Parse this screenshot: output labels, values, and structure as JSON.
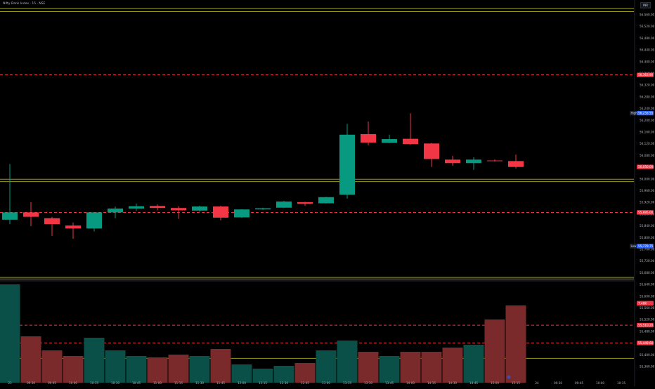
{
  "header": {
    "symbol_line": "Nifty Bank Index · 15 · NSE",
    "corner_badge": "INR"
  },
  "colors": {
    "up": "#089981",
    "down": "#f23645",
    "vol_up": "#0a4f48",
    "vol_down": "#7a2a2a",
    "level_red": "#f23645",
    "level_yellow": "#9a9a1a",
    "grid": "#161a25",
    "axis_text": "#b2b5be"
  },
  "chart_data": {
    "type": "candlestick",
    "x_tick_labels": [
      "23",
      "09:30",
      "09:45",
      "10:00",
      "10:15",
      "10:30",
      "10:45",
      "11:00",
      "11:15",
      "11:30",
      "11:45",
      "12:00",
      "12:15",
      "12:30",
      "12:45",
      "13:00",
      "13:15",
      "13:30",
      "13:45",
      "14:00",
      "14:15",
      "14:30",
      "14:45",
      "15:00",
      "15:15",
      "24",
      "09:30",
      "09:45",
      "10:00",
      "10:15"
    ],
    "y_tick_labels": [
      "56,560.00",
      "56,520.00",
      "56,480.00",
      "56,440.00",
      "56,400.00",
      "56,360.00",
      "56,320.00",
      "56,280.00",
      "56,240.00",
      "56,200.00",
      "56,160.00",
      "56,120.00",
      "56,080.00",
      "56,040.00",
      "56,000.00",
      "55,960.00",
      "55,920.00",
      "55,880.00",
      "55,840.00",
      "55,800.00",
      "55,760.00",
      "55,720.00",
      "55,680.00",
      "55,640.00",
      "55,600.00",
      "55,560.00",
      "55,520.00",
      "55,480.00",
      "55,440.00",
      "55,400.00",
      "55,360.00"
    ],
    "ylim": [
      55350,
      56605
    ],
    "price_labels": [
      {
        "label": "",
        "value": "56,363.90",
        "price": 56363.9,
        "color": "#f23645"
      },
      {
        "label": "High",
        "value": "56,233.55",
        "price": 56233.55,
        "color": "#2962ff"
      },
      {
        "label": "",
        "value": "56,050.00",
        "price": 56050,
        "color": "#f23645"
      },
      {
        "label": "",
        "value": "55,895.00",
        "price": 55895,
        "color": "#f23645"
      },
      {
        "label": "Low",
        "value": "55,779.75",
        "price": 55779.75,
        "color": "#2962ff"
      },
      {
        "label": "",
        "value": "7.48K",
        "price": 55585,
        "color": "#f23645"
      },
      {
        "label": "",
        "value": "55,510.20",
        "price": 55510.2,
        "color": "#f23645"
      },
      {
        "label": "",
        "value": "55,449.60",
        "price": 55449.6,
        "color": "#f23645"
      }
    ],
    "level_lines": [
      {
        "price": 56590,
        "color": "#9a9a1a",
        "style": "solid"
      },
      {
        "price": 56580,
        "color": "#9a9a1a",
        "style": "solid"
      },
      {
        "price": 56363.9,
        "color": "#f23645",
        "style": "dashed"
      },
      {
        "price": 56008,
        "color": "#9a9a1a",
        "style": "solid"
      },
      {
        "price": 56000,
        "color": "#9a9a1a",
        "style": "solid"
      },
      {
        "price": 55895,
        "color": "#f23645",
        "style": "dashed"
      },
      {
        "price": 55673,
        "color": "#9a9a1a",
        "style": "solid"
      },
      {
        "price": 55668,
        "color": "#9a9a1a",
        "style": "solid"
      },
      {
        "price": 55510.2,
        "color": "#f23645",
        "style": "dashed"
      },
      {
        "price": 55449.6,
        "color": "#f23645",
        "style": "dashed"
      },
      {
        "price": 55397,
        "color": "#9a9a1a",
        "style": "solid"
      }
    ],
    "candles": [
      {
        "o": 55870,
        "h": 56060,
        "l": 55855,
        "c": 55895
      },
      {
        "o": 55895,
        "h": 55930,
        "l": 55848,
        "c": 55880
      },
      {
        "o": 55875,
        "h": 55880,
        "l": 55815,
        "c": 55855
      },
      {
        "o": 55850,
        "h": 55860,
        "l": 55805,
        "c": 55840
      },
      {
        "o": 55840,
        "h": 55895,
        "l": 55830,
        "c": 55895
      },
      {
        "o": 55895,
        "h": 55915,
        "l": 55875,
        "c": 55908
      },
      {
        "o": 55908,
        "h": 55925,
        "l": 55900,
        "c": 55916
      },
      {
        "o": 55917,
        "h": 55922,
        "l": 55902,
        "c": 55910
      },
      {
        "o": 55910,
        "h": 55916,
        "l": 55873,
        "c": 55902
      },
      {
        "o": 55901,
        "h": 55918,
        "l": 55897,
        "c": 55915
      },
      {
        "o": 55915,
        "h": 55918,
        "l": 55868,
        "c": 55877
      },
      {
        "o": 55878,
        "h": 55906,
        "l": 55876,
        "c": 55905
      },
      {
        "o": 55905,
        "h": 55911,
        "l": 55904,
        "c": 55909
      },
      {
        "o": 55911,
        "h": 55934,
        "l": 55910,
        "c": 55932
      },
      {
        "o": 55930,
        "h": 55931,
        "l": 55918,
        "c": 55924
      },
      {
        "o": 55926,
        "h": 55948,
        "l": 55925,
        "c": 55947
      },
      {
        "o": 55955,
        "h": 56197,
        "l": 55942,
        "c": 56160
      },
      {
        "o": 56162,
        "h": 56205,
        "l": 56124,
        "c": 56133
      },
      {
        "o": 56132,
        "h": 56160,
        "l": 56131,
        "c": 56145
      },
      {
        "o": 56146,
        "h": 56233,
        "l": 56125,
        "c": 56128
      },
      {
        "o": 56130,
        "h": 56132,
        "l": 56050,
        "c": 56077
      },
      {
        "o": 56075,
        "h": 56088,
        "l": 56054,
        "c": 56063
      },
      {
        "o": 56063,
        "h": 56083,
        "l": 56040,
        "c": 56075
      },
      {
        "o": 56072,
        "h": 56076,
        "l": 56068,
        "c": 56070
      },
      {
        "o": 56070,
        "h": 56092,
        "l": 56045,
        "c": 56050
      }
    ],
    "volume": [
      {
        "v": 7.0,
        "up": true
      },
      {
        "v": 3.3,
        "up": false
      },
      {
        "v": 2.3,
        "up": false
      },
      {
        "v": 1.9,
        "up": false
      },
      {
        "v": 3.2,
        "up": true
      },
      {
        "v": 2.3,
        "up": true
      },
      {
        "v": 1.9,
        "up": true
      },
      {
        "v": 1.8,
        "up": false
      },
      {
        "v": 2.0,
        "up": false
      },
      {
        "v": 1.9,
        "up": true
      },
      {
        "v": 2.4,
        "up": false
      },
      {
        "v": 1.3,
        "up": true
      },
      {
        "v": 1.0,
        "up": true
      },
      {
        "v": 1.2,
        "up": true
      },
      {
        "v": 1.4,
        "up": false
      },
      {
        "v": 2.3,
        "up": true
      },
      {
        "v": 3.0,
        "up": true
      },
      {
        "v": 2.2,
        "up": false
      },
      {
        "v": 1.9,
        "up": true
      },
      {
        "v": 2.2,
        "up": false
      },
      {
        "v": 2.2,
        "up": false
      },
      {
        "v": 2.5,
        "up": false
      },
      {
        "v": 2.7,
        "up": true
      },
      {
        "v": 4.5,
        "up": false
      },
      {
        "v": 5.5,
        "up": false
      }
    ],
    "grid": false,
    "legend": "top-left"
  }
}
